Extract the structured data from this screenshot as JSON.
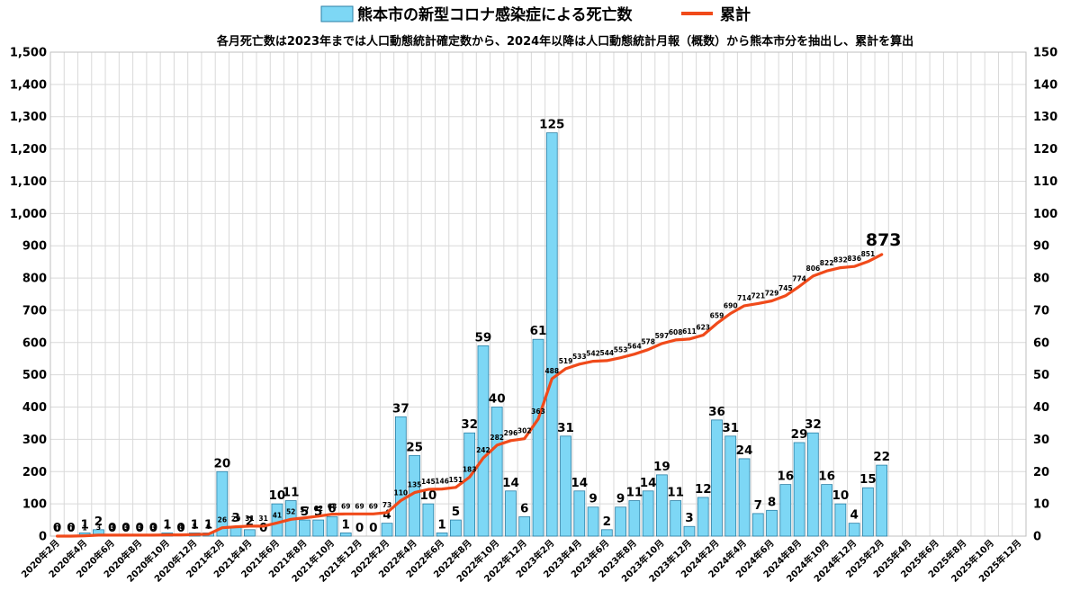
{
  "chart_data": {
    "type": "bar+line",
    "legend": {
      "bars_label": "熊本市の新型コロナ感染症による死亡数",
      "line_label": "累計",
      "placement": "top-center"
    },
    "subtitle": "各月死亡数は2023年までは人口動態統計確定数から、2024年以降は人口動態統計月報（概数）から熊本市分を抽出し、累計を算出",
    "colors": {
      "bar": "#7dd7f5",
      "bar_stroke": "#2a7fa5",
      "line": "#f04a1a",
      "grid": "#d9d9d9"
    },
    "grid": true,
    "left_axis": {
      "min": 0,
      "max": 1500,
      "step": 100,
      "ticks": [
        "0",
        "100",
        "200",
        "300",
        "400",
        "500",
        "600",
        "700",
        "800",
        "900",
        "1,000",
        "1,100",
        "1,200",
        "1,300",
        "1,400",
        "1,500"
      ]
    },
    "right_axis": {
      "min": 0,
      "max": 150,
      "step": 10,
      "ticks": [
        "0",
        "10",
        "20",
        "30",
        "40",
        "50",
        "60",
        "70",
        "80",
        "90",
        "100",
        "110",
        "120",
        "130",
        "140",
        "150"
      ]
    },
    "x_tick_labels": [
      "2020年2月",
      "2020年4月",
      "2020年6月",
      "2020年8月",
      "2020年10月",
      "2020年12月",
      "2021年2月",
      "2021年4月",
      "2021年6月",
      "2021年8月",
      "2021年10月",
      "2021年12月",
      "2022年2月",
      "2022年4月",
      "2022年6月",
      "2022年8月",
      "2022年10月",
      "2022年12月",
      "2023年2月",
      "2023年4月",
      "2023年6月",
      "2023年8月",
      "2023年10月",
      "2023年12月",
      "2024年2月",
      "2024年4月",
      "2024年6月",
      "2024年8月",
      "2024年10月",
      "2024年12月",
      "2025年2月",
      "2025年4月",
      "2025年6月",
      "2025年8月",
      "2025年10月",
      "2025年12月"
    ],
    "monthly_deaths": [
      0,
      0,
      1,
      2,
      0,
      0,
      0,
      0,
      1,
      0,
      1,
      1,
      20,
      3,
      2,
      0,
      10,
      11,
      5,
      5,
      6,
      1,
      0,
      0,
      4,
      37,
      25,
      10,
      1,
      5,
      32,
      59,
      40,
      14,
      6,
      61,
      125,
      31,
      14,
      9,
      2,
      9,
      11,
      14,
      19,
      11,
      3,
      12,
      36,
      31,
      24,
      7,
      8,
      16,
      29,
      32,
      16,
      10,
      4,
      15,
      22
    ],
    "cumulative": [
      0,
      0,
      1,
      3,
      3,
      3,
      3,
      3,
      4,
      4,
      5,
      6,
      26,
      29,
      31,
      31,
      41,
      52,
      57,
      62,
      68,
      69,
      69,
      69,
      73,
      110,
      135,
      145,
      146,
      151,
      183,
      242,
      282,
      296,
      302,
      363,
      488,
      519,
      533,
      542,
      544,
      553,
      564,
      578,
      597,
      608,
      611,
      623,
      659,
      690,
      714,
      721,
      729,
      745,
      774,
      806,
      822,
      832,
      836,
      851,
      873
    ],
    "cumulative_labels": [
      "0",
      "0",
      "1",
      "3",
      "3",
      "3",
      "3",
      "3",
      "4",
      "4",
      "5",
      "6",
      "26",
      "29",
      "31",
      "31",
      "41",
      "52",
      "57",
      "62",
      "68",
      "69",
      "69",
      "69",
      "73",
      "110",
      "135",
      "145",
      "146",
      "151",
      "183",
      "242",
      "282",
      "296",
      "302",
      "363",
      "488",
      "519",
      "533",
      "542",
      "544",
      "553",
      "564",
      "578",
      "597",
      "608",
      "611",
      "623",
      "659",
      "690",
      "714",
      "721",
      "729",
      "745",
      "774",
      "806",
      "822",
      "832",
      "836",
      "851",
      "873"
    ],
    "total_months": 71
  }
}
